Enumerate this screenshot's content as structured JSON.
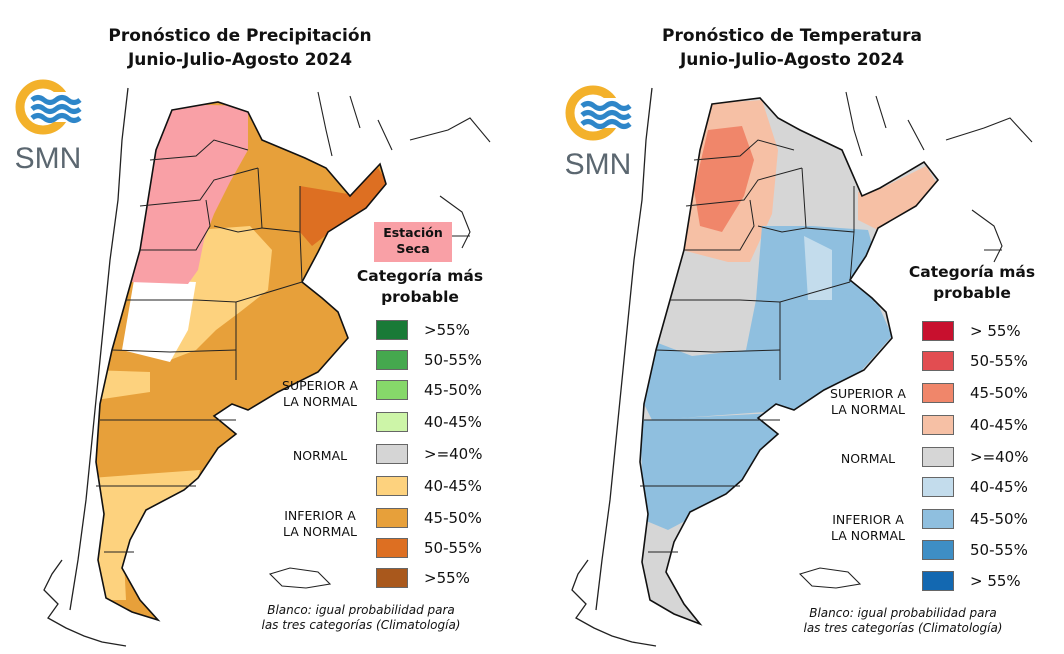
{
  "colors": {
    "precip": [
      "#197a37",
      "#45a84e",
      "#86d86a",
      "#cdf5a8",
      "#d5d5d5",
      "#fdd27e",
      "#e7a03a",
      "#dd6f22",
      "#a9581c"
    ],
    "temp": [
      "#c8102e",
      "#e24d51",
      "#f0866a",
      "#f6c0a5",
      "#d6d6d6",
      "#c3dcec",
      "#8fbfdf",
      "#3e8ec5",
      "#1368b1"
    ],
    "seca": "#f9a0a6",
    "logo_ring": "#f3b12b",
    "logo_waves": "#2e86c9",
    "logo_text": "#5b6770"
  },
  "panels": [
    {
      "id": "precip",
      "title_line1": "Pronóstico de Precipitación",
      "title_line2": "Junio-Julio-Agosto 2024",
      "logo_text": "SMN",
      "dry_season_label_line1": "Estación",
      "dry_season_label_line2": "Seca",
      "category_heading_line1": "Categoría más",
      "category_heading_line2": "probable",
      "legend": [
        {
          "label": ">55%"
        },
        {
          "label": "50-55%"
        },
        {
          "label": "45-50%"
        },
        {
          "label": "40-45%"
        },
        {
          "label": ">=40%"
        },
        {
          "label": "40-45%"
        },
        {
          "label": "45-50%"
        },
        {
          "label": "50-55%"
        },
        {
          "label": ">55%"
        }
      ],
      "side_labels": {
        "superior_line1": "SUPERIOR A",
        "superior_line2": "LA NORMAL",
        "normal": "NORMAL",
        "inferior_line1": "INFERIOR A",
        "inferior_line2": "LA NORMAL"
      },
      "note_line1": "Blanco: igual probabilidad para",
      "note_line2": "las tres categorías (Climatología)"
    },
    {
      "id": "temp",
      "title_line1": "Pronóstico de Temperatura",
      "title_line2": "Junio-Julio-Agosto 2024",
      "logo_text": "SMN",
      "category_heading_line1": "Categoría más",
      "category_heading_line2": "probable",
      "legend": [
        {
          "label": "> 55%"
        },
        {
          "label": "50-55%"
        },
        {
          "label": "45-50%"
        },
        {
          "label": "40-45%"
        },
        {
          "label": ">=40%"
        },
        {
          "label": "40-45%"
        },
        {
          "label": "45-50%"
        },
        {
          "label": "50-55%"
        },
        {
          "label": "> 55%"
        }
      ],
      "side_labels": {
        "superior_line1": "SUPERIOR A",
        "superior_line2": "LA NORMAL",
        "normal": "NORMAL",
        "inferior_line1": "INFERIOR A",
        "inferior_line2": "LA NORMAL"
      },
      "note_line1": "Blanco: igual probabilidad para",
      "note_line2": "las tres categorías (Climatología)"
    }
  ]
}
